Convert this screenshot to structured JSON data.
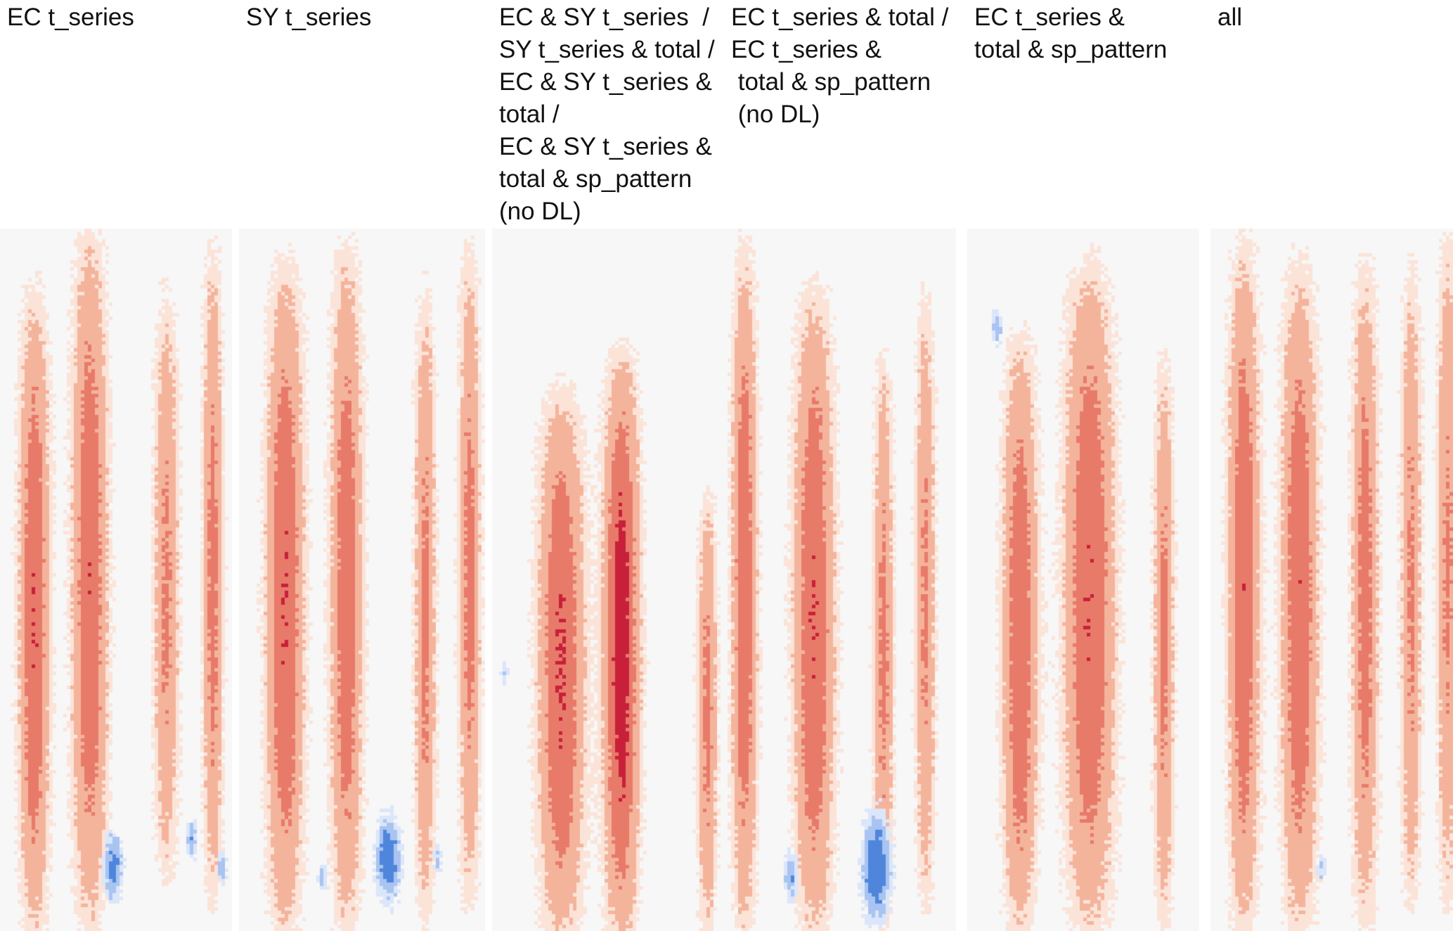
{
  "figure": {
    "panels": [
      {
        "id": "ec-t-series",
        "label": "EC t_series"
      },
      {
        "id": "sy-t-series",
        "label": "SY t_series"
      },
      {
        "id": "ec-sy-combined",
        "label": "EC & SY t_series  /\nSY t_series & total /\nEC & SY t_series &\ntotal /\nEC & SY t_series &\ntotal & sp_pattern\n(no DL)"
      },
      {
        "id": "ec-total",
        "label": "EC t_series & total /\nEC t_series &\n total & sp_pattern\n (no DL)"
      },
      {
        "id": "ec-total-sp",
        "label": "EC t_series &\ntotal & sp_pattern"
      },
      {
        "id": "all",
        "label": "all"
      }
    ]
  },
  "colors": {
    "background": "#f7f7f7",
    "palette_red": [
      "#fbe3d8",
      "#f4b49c",
      "#e87a6a",
      "#c8203a"
    ],
    "palette_blue": [
      "#dbe6fa",
      "#a9c4f0",
      "#4f86dc"
    ]
  }
}
